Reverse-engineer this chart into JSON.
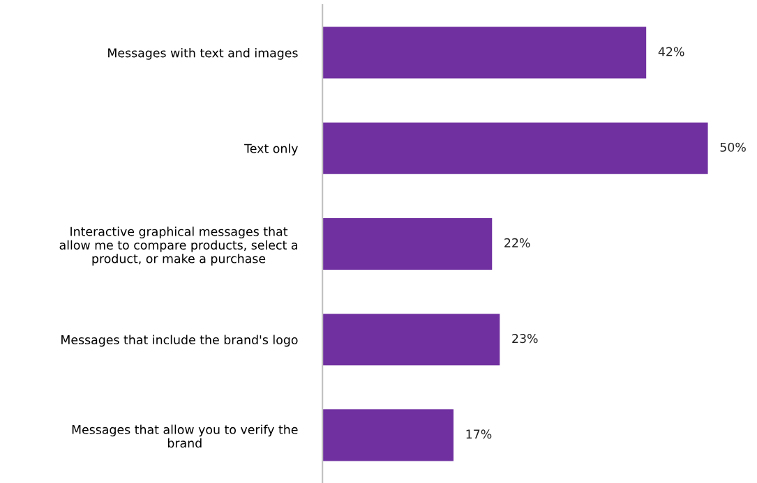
{
  "chart_data": {
    "type": "bar",
    "orientation": "horizontal",
    "categories": [
      "Messages with text and images",
      "Text only",
      "Interactive graphical messages that\nallow me to compare products, select a\nproduct, or make a purchase",
      "Messages that include the brand's logo",
      "Messages that allow you to verify the\nbrand"
    ],
    "values": [
      42,
      50,
      22,
      23,
      17
    ],
    "value_labels": [
      "42%",
      "50%",
      "22%",
      "23%",
      "17%"
    ],
    "color": "#7030a0",
    "grid": false
  }
}
